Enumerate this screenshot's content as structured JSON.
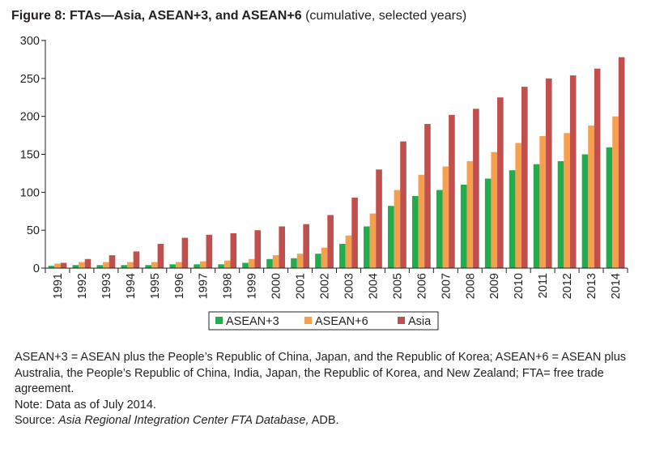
{
  "figure": {
    "title_bold": "Figure 8: FTAs—Asia, ASEAN+3, and ASEAN+6",
    "title_rest": "(cumulative, selected years)"
  },
  "chart_data": {
    "type": "bar",
    "title": "Figure 8: FTAs—Asia, ASEAN+3, and ASEAN+6 (cumulative, selected years)",
    "categories": [
      "1991",
      "1992",
      "1993",
      "1994",
      "1995",
      "1996",
      "1997",
      "1998",
      "1999",
      "2000",
      "2001",
      "2002",
      "2003",
      "2004",
      "2005",
      "2006",
      "2007",
      "2008",
      "2009",
      "2010",
      "2011",
      "2012",
      "2013",
      "2014"
    ],
    "series": [
      {
        "name": "ASEAN+3",
        "color": "#1fae4b",
        "values": [
          3,
          4,
          4,
          4,
          4,
          5,
          5,
          5,
          7,
          12,
          13,
          19,
          32,
          55,
          82,
          95,
          103,
          110,
          118,
          129,
          137,
          141,
          150,
          159
        ]
      },
      {
        "name": "ASEAN+6",
        "color": "#f6a04d",
        "values": [
          6,
          8,
          8,
          8,
          8,
          8,
          9,
          10,
          12,
          17,
          19,
          27,
          43,
          72,
          103,
          123,
          134,
          141,
          153,
          165,
          174,
          178,
          188,
          200
        ]
      },
      {
        "name": "Asia",
        "color": "#c1504d",
        "values": [
          7,
          12,
          17,
          22,
          32,
          40,
          44,
          46,
          50,
          55,
          58,
          70,
          93,
          130,
          167,
          190,
          202,
          210,
          225,
          239,
          250,
          254,
          263,
          278
        ]
      }
    ],
    "yticks": [
      0,
      50,
      100,
      150,
      200,
      250,
      300
    ],
    "ylim": [
      0,
      300
    ],
    "xlabel": "",
    "ylabel": "",
    "grid": false,
    "legend": "bottom-center"
  },
  "notes": {
    "line1": "ASEAN+3 = ASEAN plus the People’s Republic of China, Japan, and the Republic of Korea; ASEAN+6 = ASEAN plus Australia, the People’s Republic of China, India, Japan, the Republic of Korea, and New Zealand; FTA= free trade agreement.",
    "line2": "Note: Data as of July 2014.",
    "source_prefix": "Source: ",
    "source_italic": "Asia Regional Integration Center FTA Database,",
    "source_suffix": " ADB."
  }
}
